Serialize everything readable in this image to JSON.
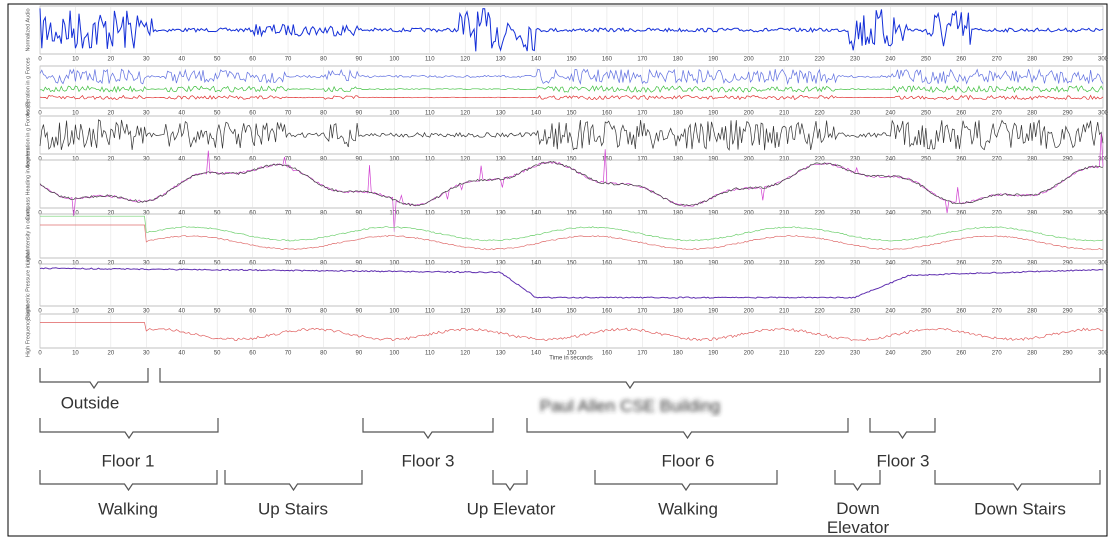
{
  "figure": {
    "x_axis_label": "Time in seconds",
    "xticks": [
      0,
      10,
      20,
      30,
      40,
      50,
      60,
      70,
      80,
      90,
      100,
      110,
      120,
      130,
      140,
      150,
      160,
      170,
      180,
      190,
      200,
      210,
      220,
      230,
      240,
      250,
      260,
      270,
      280,
      290,
      300
    ],
    "panels": [
      {
        "y_label": "Normalized Audio"
      },
      {
        "y_label": "Acceleration in g Forces"
      },
      {
        "y_label": "Acceleration in g Forces (2)"
      },
      {
        "y_label": "Compass Heading in degrees"
      },
      {
        "y_label": "Light Intensity in counts"
      },
      {
        "y_label": "Barometric Pressure in mbar"
      },
      {
        "y_label": "High Frequency Light"
      }
    ],
    "annotations": [
      {
        "label": "Outside"
      },
      {
        "label": "Paul Allen CSE Building"
      },
      {
        "label": "Floor 1"
      },
      {
        "label": "Floor 3"
      },
      {
        "label": "Floor 6"
      },
      {
        "label": "Floor 3"
      },
      {
        "label": "Walking"
      },
      {
        "label": "Up Stairs"
      },
      {
        "label": "Up Elevator"
      },
      {
        "label": "Walking"
      },
      {
        "label": "Down Elevator"
      },
      {
        "label": "Down Stairs"
      }
    ]
  }
}
